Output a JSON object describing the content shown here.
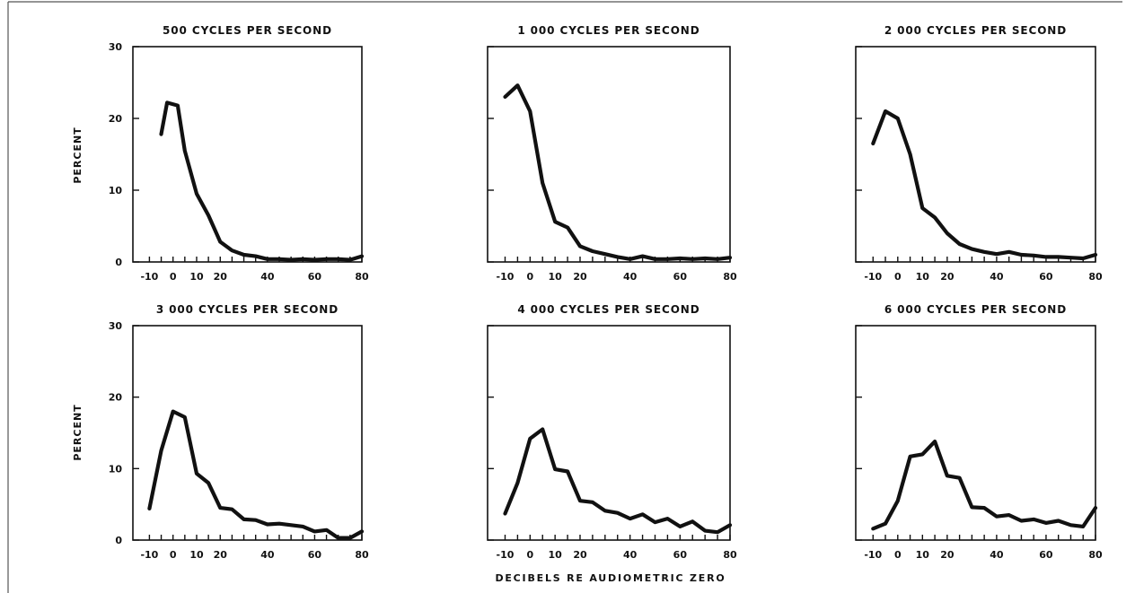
{
  "figure": {
    "xlabel": "DECIBELS RE AUDIOMETRIC ZERO",
    "ylabel": "PERCENT"
  },
  "chart_data": [
    {
      "type": "line",
      "title": "500 CYCLES PER SECOND",
      "xlim": [
        -17,
        80
      ],
      "ylim": [
        0,
        30
      ],
      "xticks": [
        "-10",
        "0",
        "10",
        "20",
        "40",
        "60",
        "80"
      ],
      "yticks": [
        "0",
        "10",
        "20",
        "30"
      ],
      "x": [
        -5,
        -2.5,
        2,
        5,
        10,
        15,
        20,
        25,
        30,
        35,
        40,
        45,
        50,
        55,
        60,
        65,
        70,
        75,
        80
      ],
      "values": [
        17.8,
        22.2,
        21.8,
        15.5,
        9.5,
        6.5,
        2.8,
        1.6,
        1.0,
        0.8,
        0.4,
        0.4,
        0.3,
        0.4,
        0.3,
        0.4,
        0.4,
        0.3,
        0.8
      ]
    },
    {
      "type": "line",
      "title": "1 000 CYCLES PER SECOND",
      "xlim": [
        -17,
        80
      ],
      "ylim": [
        0,
        30
      ],
      "xticks": [
        "-10",
        "0",
        "10",
        "20",
        "40",
        "60",
        "80"
      ],
      "yticks": [
        "0",
        "10",
        "20",
        "30"
      ],
      "x": [
        -10,
        -5,
        0,
        5,
        10,
        15,
        20,
        25,
        30,
        35,
        40,
        45,
        50,
        55,
        60,
        65,
        70,
        75,
        80
      ],
      "values": [
        23.0,
        24.6,
        21.0,
        11.0,
        5.6,
        4.8,
        2.2,
        1.5,
        1.1,
        0.7,
        0.4,
        0.8,
        0.4,
        0.4,
        0.5,
        0.4,
        0.5,
        0.4,
        0.6
      ]
    },
    {
      "type": "line",
      "title": "2 000 CYCLES PER SECOND",
      "xlim": [
        -17,
        80
      ],
      "ylim": [
        0,
        30
      ],
      "xticks": [
        "-10",
        "0",
        "10",
        "20",
        "40",
        "60",
        "80"
      ],
      "yticks": [
        "0",
        "10",
        "20",
        "30"
      ],
      "x": [
        -10,
        -5,
        0,
        5,
        10,
        15,
        20,
        25,
        30,
        35,
        40,
        45,
        50,
        55,
        60,
        65,
        70,
        75,
        80
      ],
      "values": [
        16.5,
        21.0,
        20.0,
        15.0,
        7.5,
        6.2,
        4.0,
        2.5,
        1.8,
        1.4,
        1.1,
        1.4,
        1.0,
        0.9,
        0.7,
        0.7,
        0.6,
        0.5,
        1.0
      ]
    },
    {
      "type": "line",
      "title": "3 000 CYCLES PER SECOND",
      "xlim": [
        -17,
        80
      ],
      "ylim": [
        0,
        30
      ],
      "xticks": [
        "-10",
        "0",
        "10",
        "20",
        "40",
        "60",
        "80"
      ],
      "yticks": [
        "0",
        "10",
        "20",
        "30"
      ],
      "x": [
        -10,
        -5,
        0,
        5,
        10,
        15,
        20,
        25,
        30,
        35,
        40,
        45,
        50,
        55,
        60,
        65,
        70,
        75,
        80
      ],
      "values": [
        4.4,
        12.5,
        18.0,
        17.2,
        9.3,
        8.0,
        4.5,
        4.3,
        2.9,
        2.8,
        2.2,
        2.3,
        2.1,
        1.9,
        1.2,
        1.4,
        0.3,
        0.3,
        1.2
      ]
    },
    {
      "type": "line",
      "title": "4 000 CYCLES PER SECOND",
      "xlim": [
        -17,
        80
      ],
      "ylim": [
        0,
        30
      ],
      "xticks": [
        "-10",
        "0",
        "10",
        "20",
        "40",
        "60",
        "80"
      ],
      "yticks": [
        "0",
        "10",
        "20",
        "30"
      ],
      "x": [
        -10,
        -5,
        0,
        5,
        10,
        15,
        20,
        25,
        30,
        35,
        40,
        45,
        50,
        55,
        60,
        65,
        70,
        75,
        80
      ],
      "values": [
        3.7,
        8.0,
        14.2,
        15.5,
        9.9,
        9.6,
        5.5,
        5.3,
        4.1,
        3.8,
        3.0,
        3.6,
        2.5,
        3.0,
        1.9,
        2.6,
        1.3,
        1.1,
        2.1
      ]
    },
    {
      "type": "line",
      "title": "6 000 CYCLES PER SECOND",
      "xlim": [
        -17,
        80
      ],
      "ylim": [
        0,
        30
      ],
      "xticks": [
        "-10",
        "0",
        "10",
        "20",
        "40",
        "60",
        "80"
      ],
      "yticks": [
        "0",
        "10",
        "20",
        "30"
      ],
      "x": [
        -10,
        -5,
        0,
        5,
        10,
        15,
        20,
        25,
        30,
        35,
        40,
        45,
        50,
        55,
        60,
        65,
        70,
        75,
        80
      ],
      "values": [
        1.6,
        2.3,
        5.5,
        11.7,
        12.0,
        13.8,
        9.0,
        8.7,
        4.6,
        4.5,
        3.3,
        3.5,
        2.7,
        2.9,
        2.4,
        2.7,
        2.1,
        1.9,
        4.5
      ]
    }
  ]
}
